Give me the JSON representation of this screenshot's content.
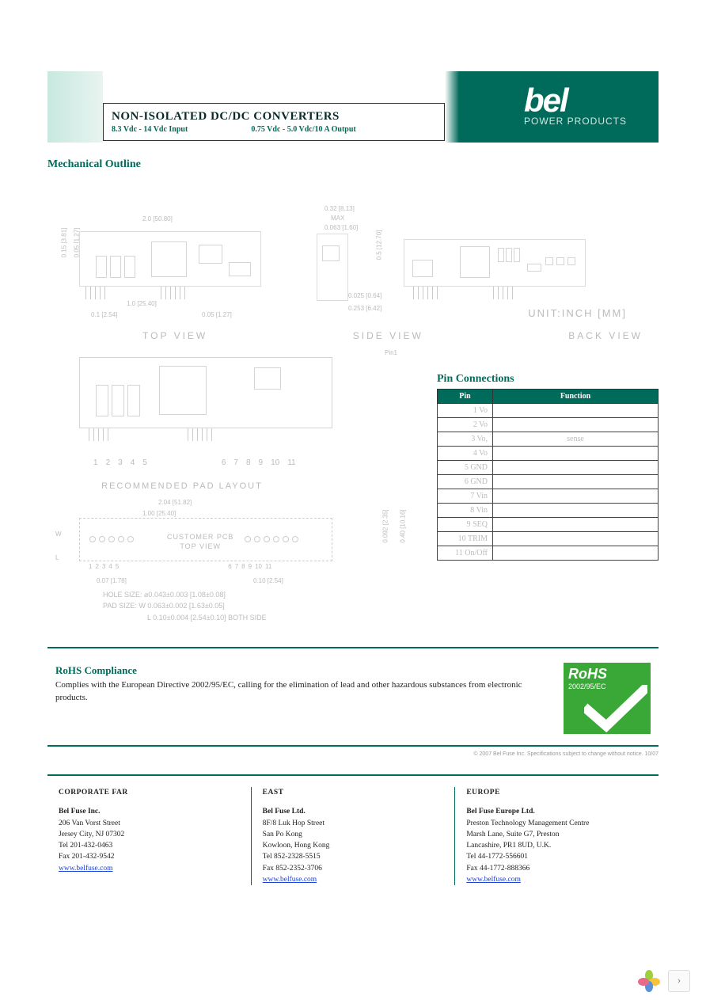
{
  "header": {
    "title": "NON-ISOLATED DC/DC CONVERTERS",
    "input_spec": "8.3 Vdc - 14 Vdc Input",
    "output_spec": "0.75 Vdc - 5.0 Vdc/10 A Output",
    "brand": "bel",
    "brand_sub": "POWER PRODUCTS"
  },
  "sections": {
    "mechanical": "Mechanical Outline",
    "pin_connections": "Pin Connections",
    "rohs_title": "RoHS Compliance"
  },
  "drawing": {
    "unit_label": "UNIT:INCH  [MM]",
    "views": {
      "top": "TOP VIEW",
      "side": "SIDE VIEW",
      "back": "BACK VIEW"
    },
    "dims": {
      "width": "2.0  [50.80]",
      "w_offset_left": "0.15 [3.81]",
      "h_right": "0.5  [12.70]",
      "h_offset_top": "0.05 [1.27]",
      "pitch_left": "0.1  [2.54]",
      "pitch_right": "0.05  [1.27]",
      "group_span": "1.0  [25.40]",
      "side_max_label": "MAX",
      "side_top": "0.32  [8.13]",
      "side_thick": "0.063  [1.60]",
      "side_pin": "0.025  [0.64]",
      "side_bot": "0.253  [6.42]"
    },
    "pad_layout_label": "RECOMMENDED PAD LAYOUT",
    "pad": {
      "width": "2.04  [51.82]",
      "inner": "1.00  [25.40]",
      "left_off": "0.07  [1.78]",
      "right_off": "0.10  [2.54]",
      "h1": "0.092  [2.35]",
      "h2": "0.40  [10.16]",
      "w_label": "W",
      "l_label": "L",
      "pcb_label_1": "CUSTOMER PCB",
      "pcb_label_2": "TOP VIEW",
      "note_hole": "HOLE SIZE: ⌀0.043±0.003  [1.08±0.08]",
      "note_pad_w": "PAD SIZE: W 0.063±0.002  [1.63±0.05]",
      "note_pad_l": "L 0.10±0.004  [2.54±0.10] BOTH SIDE"
    },
    "pin_numbers_left": [
      "1",
      "2",
      "3",
      "4",
      "5"
    ],
    "pin_numbers_right": [
      "6",
      "7",
      "8",
      "9",
      "10",
      "11"
    ],
    "pin1_label": "Pin1"
  },
  "pin_table": {
    "headers": {
      "pin": "Pin",
      "function": "Function"
    },
    "rows": [
      {
        "pin": "1 Vo",
        "fn": ""
      },
      {
        "pin": "2 Vo",
        "fn": ""
      },
      {
        "pin": "3 Vo,",
        "fn": "sense"
      },
      {
        "pin": "4 Vo",
        "fn": ""
      },
      {
        "pin": "5 GND",
        "fn": ""
      },
      {
        "pin": "6 GND",
        "fn": ""
      },
      {
        "pin": "7 Vin",
        "fn": ""
      },
      {
        "pin": "8 Vin",
        "fn": ""
      },
      {
        "pin": "9 SEQ",
        "fn": ""
      },
      {
        "pin": "10 TRIM",
        "fn": ""
      },
      {
        "pin": "11 On/Off",
        "fn": ""
      }
    ]
  },
  "rohs": {
    "text": "Complies with the European Directive 2002/95/EC, calling for the elimination of lead and other hazardous substances from electronic products.",
    "badge_head": "RoHS",
    "badge_sub": "2002/95/EC"
  },
  "copyright": "© 2007 Bel Fuse Inc.   Specifications subject to change without notice.   10/07",
  "contacts": {
    "far": {
      "region": "CORPORATE FAR",
      "company": "Bel Fuse Inc.",
      "lines": [
        "206 Van Vorst Street",
        "Jersey City, NJ 07302",
        "Tel   201-432-0463",
        "Fax  201-432-9542"
      ],
      "link": "www.belfuse.com"
    },
    "east": {
      "region": "EAST",
      "company": "Bel Fuse Ltd.",
      "lines": [
        "8F/8 Luk Hop Street",
        "San Po Kong",
        "Kowloon, Hong Kong",
        "Tel   852-2328-5515",
        "Fax  852-2352-3706"
      ],
      "link": "www.belfuse.com"
    },
    "europe": {
      "region": "EUROPE",
      "company": "Bel Fuse Europe Ltd.",
      "lines": [
        "Preston Technology Management Centre",
        "Marsh Lane, Suite G7, Preston",
        "Lancashire, PR1 8UD, U.K.",
        "Tel   44-1772-556601",
        "Fax  44-1772-888366"
      ],
      "link": "www.belfuse.com"
    }
  },
  "colors": {
    "brand_teal": "#006b5a",
    "rohs_green": "#39a836",
    "faint_grey": "#bbbbbb"
  }
}
